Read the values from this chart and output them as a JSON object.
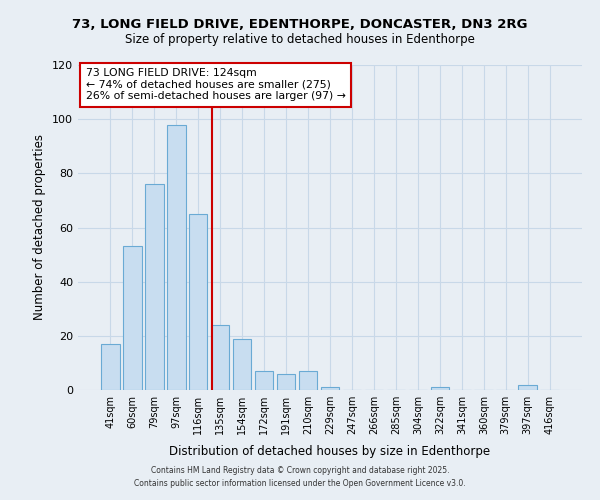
{
  "title1": "73, LONG FIELD DRIVE, EDENTHORPE, DONCASTER, DN3 2RG",
  "title2": "Size of property relative to detached houses in Edenthorpe",
  "xlabel": "Distribution of detached houses by size in Edenthorpe",
  "ylabel": "Number of detached properties",
  "bar_labels": [
    "41sqm",
    "60sqm",
    "79sqm",
    "97sqm",
    "116sqm",
    "135sqm",
    "154sqm",
    "172sqm",
    "191sqm",
    "210sqm",
    "229sqm",
    "247sqm",
    "266sqm",
    "285sqm",
    "304sqm",
    "322sqm",
    "341sqm",
    "360sqm",
    "379sqm",
    "397sqm",
    "416sqm"
  ],
  "bar_values": [
    17,
    53,
    76,
    98,
    65,
    24,
    19,
    7,
    6,
    7,
    1,
    0,
    0,
    0,
    0,
    1,
    0,
    0,
    0,
    2,
    0
  ],
  "bar_color": "#c8ddf0",
  "bar_edge_color": "#6aaad4",
  "vline_x_index": 4.62,
  "annotation_line1": "73 LONG FIELD DRIVE: 124sqm",
  "annotation_line2": "← 74% of detached houses are smaller (275)",
  "annotation_line3": "26% of semi-detached houses are larger (97) →",
  "vline_color": "#cc0000",
  "ylim": [
    0,
    120
  ],
  "yticks": [
    0,
    20,
    40,
    60,
    80,
    100,
    120
  ],
  "grid_color": "#c8d8e8",
  "background_color": "#e8eef4",
  "footer1": "Contains HM Land Registry data © Crown copyright and database right 2025.",
  "footer2": "Contains public sector information licensed under the Open Government Licence v3.0."
}
